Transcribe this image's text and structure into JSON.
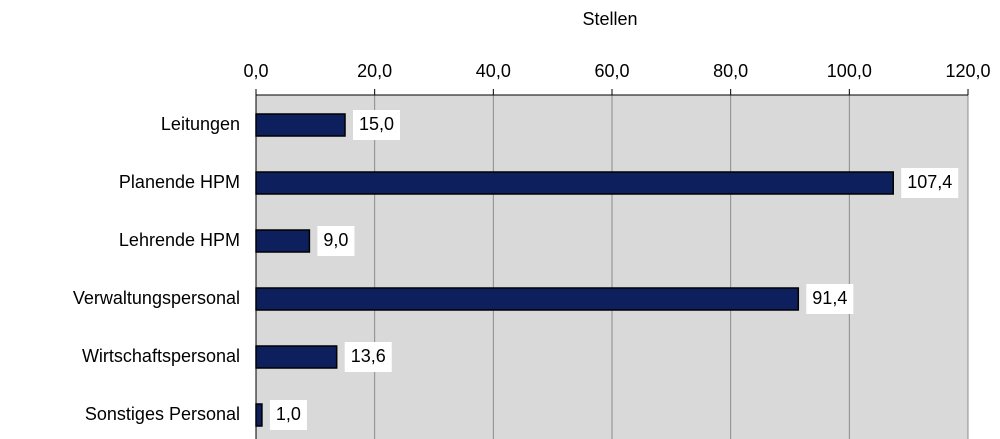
{
  "chart_data": {
    "type": "bar",
    "orientation": "horizontal",
    "x_label": "Stellen",
    "categories": [
      "Leitungen",
      "Planende HPM",
      "Lehrende HPM",
      "Verwaltungspersonal",
      "Wirtschaftspersonal",
      "Sonstiges Personal"
    ],
    "values": [
      15.0,
      107.4,
      9.0,
      91.4,
      13.6,
      1.0
    ],
    "value_labels": [
      "15,0",
      "107,4",
      "9,0",
      "91,4",
      "13,6",
      "1,0"
    ],
    "color": "#0d1f5c",
    "xlim": [
      0,
      120
    ],
    "xticks": [
      {
        "value": 0,
        "label": "0,0"
      },
      {
        "value": 20,
        "label": "20,0"
      },
      {
        "value": 40,
        "label": "40,0"
      },
      {
        "value": 60,
        "label": "60,0"
      },
      {
        "value": 80,
        "label": "80,0"
      },
      {
        "value": 100,
        "label": "100,0"
      },
      {
        "value": 120,
        "label": "120,0"
      }
    ],
    "grid": true,
    "background": "#d9d9d9"
  }
}
